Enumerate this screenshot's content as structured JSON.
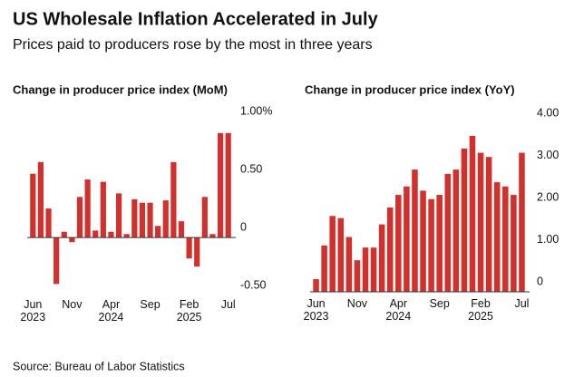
{
  "header": {
    "title": "US Wholesale Inflation Accelerated in July",
    "subtitle": "Prices paid to producers rose by the most in three years"
  },
  "source": "Source: Bureau of Labor Statistics",
  "chart_data": [
    {
      "type": "bar",
      "title": "Change in producer price index (MoM)",
      "color": "#d2302c",
      "categories": [
        "Jun 2023",
        null,
        null,
        null,
        null,
        "Nov",
        null,
        null,
        null,
        null,
        "Apr 2024",
        null,
        null,
        null,
        null,
        "Sep",
        null,
        null,
        null,
        null,
        "Feb 2025",
        null,
        null,
        null,
        null,
        "Jul"
      ],
      "values": [
        0.55,
        0.65,
        0.25,
        -0.4,
        0.05,
        -0.04,
        0.35,
        0.5,
        0.06,
        0.48,
        0.05,
        0.38,
        0.03,
        0.33,
        0.3,
        0.3,
        0.1,
        0.32,
        0.65,
        0.14,
        -0.18,
        -0.25,
        0.35,
        0.03,
        0.9,
        0.9
      ],
      "ylim": [
        -0.6,
        1.0
      ],
      "yticks": [
        {
          "value": 1.0,
          "label": "1.00%"
        },
        {
          "value": 0.5,
          "label": "0.50"
        },
        0,
        {
          "value": -0.5,
          "label": "-0.50"
        }
      ]
    },
    {
      "type": "bar",
      "title": "Change in producer price index (YoY)",
      "color": "#d2302c",
      "categories": [
        "Jun 2023",
        null,
        null,
        null,
        null,
        "Nov",
        null,
        null,
        null,
        null,
        "Apr 2024",
        null,
        null,
        null,
        null,
        "Sep",
        null,
        null,
        null,
        null,
        "Feb 2025",
        null,
        null,
        null,
        null,
        "Jul"
      ],
      "values": [
        0.3,
        1.1,
        1.8,
        1.75,
        1.3,
        0.75,
        1.05,
        1.05,
        1.6,
        2.0,
        2.3,
        2.5,
        2.9,
        2.4,
        2.2,
        2.3,
        2.8,
        2.9,
        3.4,
        3.7,
        3.3,
        3.2,
        2.6,
        2.5,
        2.3,
        3.3
      ],
      "ylim": [
        0,
        4
      ],
      "yticks": [
        {
          "value": 4,
          "label": "4.00"
        },
        {
          "value": 3,
          "label": "3.00"
        },
        {
          "value": 2,
          "label": "2.00"
        },
        {
          "value": 1,
          "label": "1.00"
        },
        0
      ]
    }
  ]
}
